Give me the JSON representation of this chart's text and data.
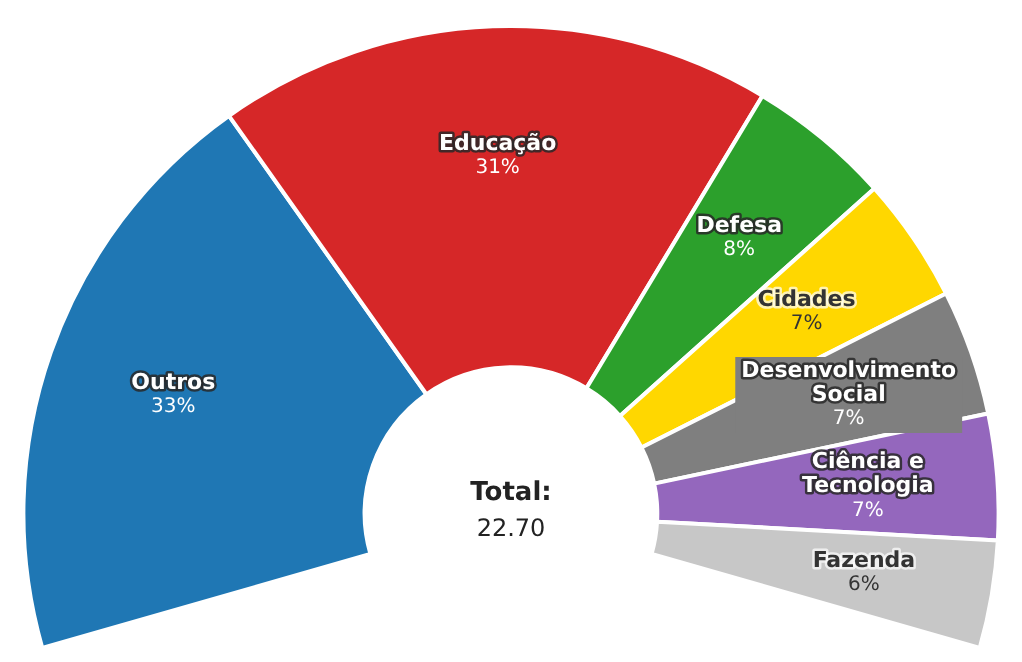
{
  "chart_data": {
    "type": "donut",
    "categories": [
      "Outros",
      "Educação",
      "Defesa",
      "Cidades",
      "Desenvolvimento Social",
      "Ciência e Tecnologia",
      "Fazenda"
    ],
    "values": [
      33,
      31,
      8,
      7,
      7,
      7,
      6
    ],
    "value_labels": [
      "33%",
      "31%",
      "8%",
      "7%",
      "7%",
      "7%",
      "6%"
    ],
    "colors": [
      "#1f77b4",
      "#d62728",
      "#2ca02c",
      "#ffd700",
      "#7f7f7f",
      "#9467bd",
      "#c7c7c7"
    ],
    "annotations": [
      "Total:",
      "22.70"
    ],
    "legend": false
  }
}
